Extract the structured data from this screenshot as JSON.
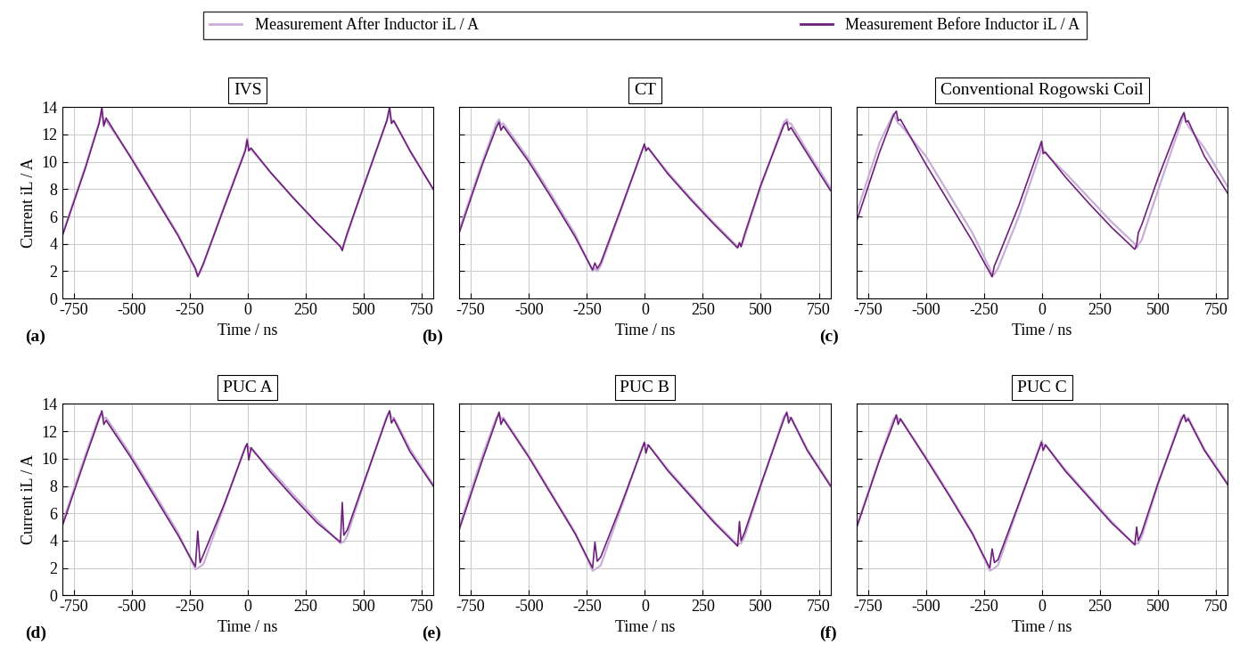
{
  "chart_data": [
    {
      "type": "line",
      "title": "IVS",
      "panel_label": "(a)",
      "xlabel": "Time / ns",
      "ylabel": "Current iL / A",
      "xlim": [
        -800,
        800
      ],
      "ylim": [
        0,
        14
      ],
      "xticks": [
        -750,
        -500,
        -250,
        0,
        250,
        500,
        750
      ],
      "yticks": [
        0,
        2,
        4,
        6,
        8,
        10,
        12,
        14
      ],
      "grid": true,
      "legend": "upper center",
      "x": [
        -800,
        -700,
        -640,
        -628,
        -620,
        -610,
        -500,
        -400,
        -300,
        -225,
        -215,
        -205,
        -190,
        -100,
        -10,
        -2,
        5,
        15,
        100,
        200,
        300,
        400,
        408,
        415,
        430,
        500,
        600,
        612,
        620,
        630,
        700,
        800
      ],
      "series": [
        {
          "name": "Measurement After Inductor iL / A",
          "color": "#c9aed8",
          "values": [
            4.6,
            9.6,
            12.9,
            13.6,
            12.8,
            13.0,
            10.3,
            7.5,
            4.7,
            2.1,
            1.7,
            1.9,
            2.5,
            6.8,
            10.9,
            11.7,
            11.0,
            10.9,
            9.2,
            7.3,
            5.5,
            3.8,
            3.6,
            3.9,
            4.7,
            8.2,
            13.0,
            13.7,
            13.0,
            13.0,
            10.8,
            8.0
          ]
        },
        {
          "name": "Measurement Before Inductor iL / A",
          "color": "#6e1f7c",
          "values": [
            4.5,
            9.5,
            12.8,
            14.0,
            12.6,
            13.2,
            10.2,
            7.4,
            4.6,
            2.2,
            1.6,
            2.0,
            2.6,
            6.7,
            10.8,
            11.6,
            10.8,
            11.0,
            9.2,
            7.3,
            5.5,
            3.8,
            3.5,
            4.0,
            4.8,
            8.2,
            13.0,
            14.0,
            12.8,
            13.0,
            10.8,
            8.0
          ]
        }
      ]
    },
    {
      "type": "line",
      "title": "CT",
      "panel_label": "(b)",
      "xlabel": "Time / ns",
      "tick_labels": "x",
      "xlim": [
        -800,
        800
      ],
      "ylim": [
        0,
        14
      ],
      "xticks": [
        -750,
        -500,
        -250,
        0,
        250,
        500,
        750
      ],
      "yticks": [
        0,
        2,
        4,
        6,
        8,
        10,
        12,
        14
      ],
      "grid": true,
      "x": [
        -800,
        -700,
        -640,
        -628,
        -620,
        -610,
        -500,
        -400,
        -300,
        -225,
        -215,
        -205,
        -190,
        -100,
        -10,
        -2,
        5,
        15,
        100,
        200,
        300,
        400,
        408,
        415,
        430,
        500,
        600,
        612,
        620,
        630,
        700,
        800
      ],
      "series": [
        {
          "name": "Measurement After Inductor iL / A",
          "color": "#c9aed8",
          "values": [
            5.0,
            10.0,
            12.8,
            13.1,
            12.7,
            12.8,
            10.2,
            7.5,
            4.7,
            2.0,
            2.2,
            2.0,
            2.4,
            6.6,
            10.9,
            11.2,
            11.0,
            11.0,
            9.2,
            7.3,
            5.5,
            3.8,
            3.9,
            3.8,
            4.5,
            8.2,
            12.9,
            13.1,
            12.8,
            12.8,
            10.8,
            8.1
          ]
        },
        {
          "name": "Measurement Before Inductor iL / A",
          "color": "#6e1f7c",
          "values": [
            4.8,
            9.8,
            12.5,
            12.9,
            12.3,
            12.6,
            10.0,
            7.3,
            4.5,
            2.1,
            2.6,
            2.2,
            2.6,
            6.7,
            10.9,
            11.3,
            10.8,
            11.0,
            9.1,
            7.2,
            5.4,
            3.7,
            4.1,
            3.8,
            4.7,
            8.3,
            12.7,
            12.9,
            12.3,
            12.5,
            10.6,
            7.9
          ]
        }
      ]
    },
    {
      "type": "line",
      "title": "Conventional Rogowski Coil",
      "panel_label": "(c)",
      "xlabel": "Time / ns",
      "tick_labels": "x",
      "xlim": [
        -800,
        800
      ],
      "ylim": [
        0,
        14
      ],
      "xticks": [
        -750,
        -500,
        -250,
        0,
        250,
        500,
        750
      ],
      "yticks": [
        0,
        2,
        4,
        6,
        8,
        10,
        12,
        14
      ],
      "grid": true,
      "x": [
        -800,
        -700,
        -640,
        -628,
        -620,
        -610,
        -500,
        -400,
        -300,
        -225,
        -215,
        -205,
        -190,
        -100,
        -10,
        -2,
        5,
        15,
        100,
        200,
        300,
        400,
        408,
        415,
        430,
        500,
        600,
        612,
        620,
        630,
        700,
        800
      ],
      "series": [
        {
          "name": "Measurement After Inductor iL / A",
          "color": "#c9aed8",
          "values": [
            6.2,
            11.4,
            13.5,
            13.1,
            12.8,
            12.7,
            10.4,
            7.6,
            4.8,
            2.2,
            1.6,
            1.8,
            2.2,
            6.0,
            10.5,
            11.3,
            10.9,
            10.6,
            9.2,
            7.4,
            5.6,
            4.0,
            3.7,
            3.9,
            4.3,
            7.9,
            12.9,
            13.5,
            13.0,
            12.6,
            11.0,
            8.2
          ]
        },
        {
          "name": "Measurement Before Inductor iL / A",
          "color": "#6e1f7c",
          "values": [
            5.6,
            10.7,
            13.4,
            13.7,
            13.0,
            13.1,
            9.8,
            7.0,
            4.2,
            1.9,
            1.6,
            2.4,
            3.0,
            6.8,
            11.1,
            11.5,
            10.6,
            10.7,
            8.9,
            7.0,
            5.2,
            3.6,
            3.9,
            4.8,
            5.4,
            8.8,
            13.2,
            13.6,
            12.9,
            13.0,
            10.4,
            7.7
          ]
        }
      ]
    },
    {
      "type": "line",
      "title": "PUC A",
      "panel_label": "(d)",
      "xlabel": "Time / ns",
      "ylabel": "Current iL / A",
      "xlim": [
        -800,
        800
      ],
      "ylim": [
        0,
        14
      ],
      "xticks": [
        -750,
        -500,
        -250,
        0,
        250,
        500,
        750
      ],
      "yticks": [
        0,
        2,
        4,
        6,
        8,
        10,
        12,
        14
      ],
      "grid": true,
      "x": [
        -800,
        -700,
        -640,
        -628,
        -620,
        -610,
        -500,
        -400,
        -300,
        -225,
        -215,
        -205,
        -190,
        -100,
        -10,
        -2,
        5,
        15,
        100,
        200,
        300,
        400,
        408,
        415,
        430,
        500,
        600,
        612,
        620,
        630,
        700,
        800
      ],
      "series": [
        {
          "name": "Measurement After Inductor iL / A",
          "color": "#c9aed8",
          "values": [
            5.2,
            10.2,
            13.1,
            13.3,
            12.9,
            13.0,
            10.2,
            7.4,
            4.6,
            1.9,
            2.0,
            2.1,
            2.3,
            6.6,
            10.9,
            11.0,
            10.8,
            10.7,
            9.2,
            7.3,
            5.5,
            3.8,
            3.9,
            3.9,
            4.4,
            8.1,
            13.1,
            13.4,
            13.0,
            13.0,
            10.7,
            8.1
          ]
        },
        {
          "name": "Measurement Before Inductor iL / A",
          "color": "#6e1f7c",
          "values": [
            5.0,
            10.0,
            12.9,
            13.5,
            12.5,
            12.8,
            10.0,
            7.2,
            4.4,
            2.1,
            4.7,
            2.4,
            3.0,
            6.7,
            10.8,
            11.1,
            9.9,
            10.8,
            9.0,
            7.1,
            5.3,
            3.9,
            6.8,
            4.4,
            4.8,
            8.2,
            13.0,
            13.5,
            12.6,
            12.9,
            10.5,
            8.0
          ]
        }
      ]
    },
    {
      "type": "line",
      "title": "PUC B",
      "panel_label": "(e)",
      "xlabel": "Time / ns",
      "tick_labels": "x",
      "xlim": [
        -800,
        800
      ],
      "ylim": [
        0,
        14
      ],
      "xticks": [
        -750,
        -500,
        -250,
        0,
        250,
        500,
        750
      ],
      "yticks": [
        0,
        2,
        4,
        6,
        8,
        10,
        12,
        14
      ],
      "grid": true,
      "x": [
        -800,
        -700,
        -640,
        -628,
        -620,
        -610,
        -500,
        -400,
        -300,
        -225,
        -215,
        -205,
        -190,
        -100,
        -10,
        -2,
        5,
        15,
        100,
        200,
        300,
        400,
        408,
        415,
        430,
        500,
        600,
        612,
        620,
        630,
        700,
        800
      ],
      "series": [
        {
          "name": "Measurement After Inductor iL / A",
          "color": "#c9aed8",
          "values": [
            5.0,
            10.2,
            13.0,
            13.2,
            12.9,
            13.0,
            10.2,
            7.4,
            4.6,
            1.8,
            1.9,
            2.0,
            2.2,
            6.5,
            10.9,
            11.1,
            11.0,
            11.0,
            9.2,
            7.3,
            5.4,
            3.7,
            3.8,
            3.8,
            4.3,
            8.0,
            13.1,
            13.3,
            13.0,
            13.0,
            10.7,
            8.1
          ]
        },
        {
          "name": "Measurement Before Inductor iL / A",
          "color": "#6e1f7c",
          "values": [
            4.8,
            9.9,
            12.8,
            13.4,
            12.5,
            12.9,
            10.1,
            7.3,
            4.5,
            2.0,
            3.9,
            2.5,
            2.8,
            6.7,
            10.8,
            11.2,
            10.4,
            11.0,
            9.1,
            7.2,
            5.3,
            3.6,
            5.4,
            4.0,
            4.6,
            8.1,
            12.9,
            13.4,
            12.6,
            13.0,
            10.6,
            8.0
          ]
        }
      ]
    },
    {
      "type": "line",
      "title": "PUC C",
      "panel_label": "(f)",
      "xlabel": "Time / ns",
      "tick_labels": "x",
      "xlim": [
        -800,
        800
      ],
      "ylim": [
        0,
        14
      ],
      "xticks": [
        -750,
        -500,
        -250,
        0,
        250,
        500,
        750
      ],
      "yticks": [
        0,
        2,
        4,
        6,
        8,
        10,
        12,
        14
      ],
      "grid": true,
      "x": [
        -800,
        -700,
        -640,
        -628,
        -620,
        -610,
        -500,
        -400,
        -300,
        -225,
        -215,
        -205,
        -190,
        -100,
        -10,
        -2,
        5,
        15,
        100,
        200,
        300,
        400,
        408,
        415,
        430,
        500,
        600,
        612,
        620,
        630,
        700,
        800
      ],
      "series": [
        {
          "name": "Measurement After Inductor iL / A",
          "color": "#c9aed8",
          "values": [
            5.0,
            10.0,
            12.9,
            13.1,
            12.9,
            12.9,
            10.1,
            7.4,
            4.6,
            1.8,
            1.9,
            2.0,
            2.2,
            6.6,
            10.9,
            11.3,
            11.0,
            11.0,
            9.2,
            7.3,
            5.4,
            3.7,
            3.8,
            3.8,
            4.3,
            8.1,
            13.0,
            13.2,
            12.9,
            13.0,
            10.7,
            8.2
          ]
        },
        {
          "name": "Measurement Before Inductor iL / A",
          "color": "#6e1f7c",
          "values": [
            4.9,
            9.9,
            12.6,
            13.2,
            12.5,
            12.9,
            10.0,
            7.3,
            4.5,
            2.0,
            3.4,
            2.4,
            2.6,
            6.7,
            10.8,
            11.2,
            10.6,
            11.0,
            9.1,
            7.2,
            5.3,
            3.7,
            5.0,
            4.0,
            4.6,
            8.2,
            12.8,
            13.2,
            12.7,
            12.9,
            10.6,
            8.1
          ]
        }
      ]
    }
  ]
}
